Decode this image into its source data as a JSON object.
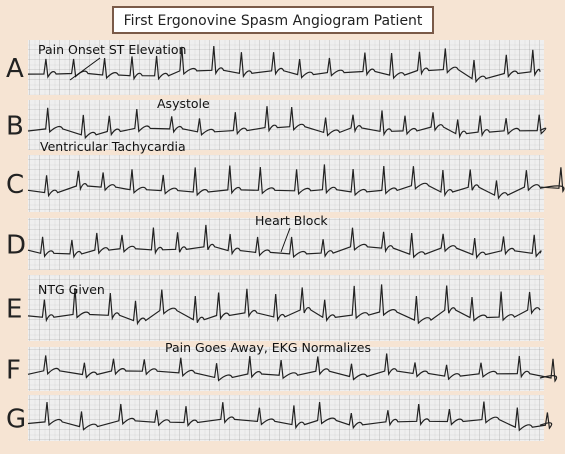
{
  "title": "First Ergonovine Spasm Angiogram Patient",
  "strips": [
    "A",
    "B",
    "C",
    "D",
    "E",
    "F",
    "G"
  ],
  "annotations": [
    "Pain Onset ST Elevation",
    "Asystole",
    "Ventricular Tachycardia",
    "Heart Block",
    "NTG Given",
    "Pain Goes Away, EKG Normalizes"
  ]
}
